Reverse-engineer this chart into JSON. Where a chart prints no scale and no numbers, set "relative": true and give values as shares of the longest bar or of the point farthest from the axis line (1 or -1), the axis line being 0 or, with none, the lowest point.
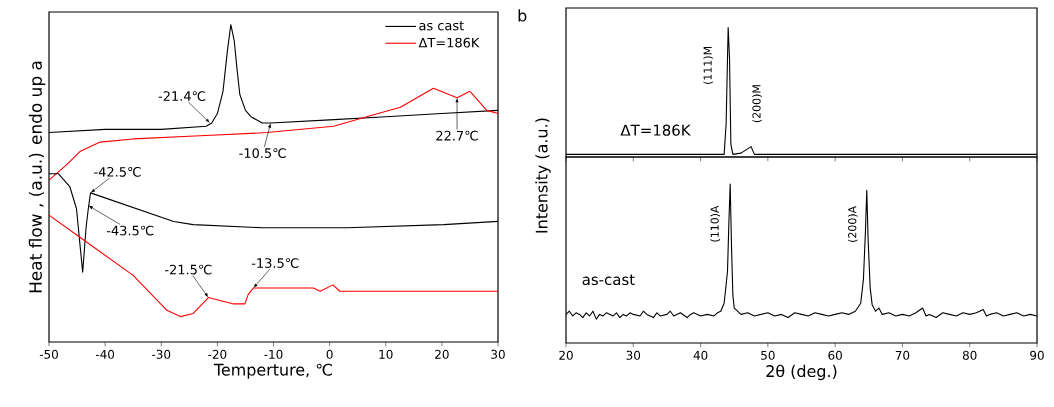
{
  "chart_data": [
    {
      "type": "line",
      "relative": true,
      "xlabel": "Temperture, ℃",
      "ylabel": "Heat flow , (a.u.) endo up a",
      "xlim": [
        -50,
        30
      ],
      "xticks": [
        -50,
        -40,
        -30,
        -20,
        -10,
        0,
        10,
        20,
        30
      ],
      "legend": "top right",
      "series": [
        {
          "name": "as cast",
          "color": "#000000",
          "x": [
            -50,
            -40,
            -30,
            -22,
            -21,
            -20,
            -19,
            -18.2,
            -17.6,
            -17,
            -16.5,
            -16,
            -15,
            -14,
            -12,
            -10.5,
            0,
            10,
            20,
            30
          ],
          "values": [
            0.66,
            0.67,
            0.67,
            0.68,
            0.69,
            0.72,
            0.79,
            0.92,
            1.0,
            0.95,
            0.86,
            0.78,
            0.73,
            0.71,
            0.69,
            0.69,
            0.7,
            0.71,
            0.72,
            0.73
          ]
        },
        {
          "name": "ΔT=186K",
          "color": "#ff0000",
          "x": [
            -50,
            -46.8,
            -44.5,
            -40.9,
            -35,
            -23.1,
            -11.2,
            0.7,
            6.6,
            12.6,
            18.5,
            22.7,
            25,
            28,
            30
          ],
          "values": [
            0.51,
            0.56,
            0.6,
            0.63,
            0.64,
            0.65,
            0.66,
            0.68,
            0.71,
            0.74,
            0.8,
            0.77,
            0.79,
            0.73,
            0.72
          ]
        },
        {
          "color": "#000000",
          "x": [
            -50,
            -48.3,
            -46.3,
            -45.1,
            -44.5,
            -44,
            -43.4,
            -43,
            -42.6,
            -27.8,
            -24.3,
            -11.8,
            3.1,
            20.3,
            30
          ],
          "values": [
            0.53,
            0.53,
            0.49,
            0.42,
            0.31,
            0.22,
            0.36,
            0.42,
            0.47,
            0.38,
            0.37,
            0.36,
            0.36,
            0.37,
            0.38
          ]
        },
        {
          "color": "#ff0000",
          "x": [
            -50,
            -44.5,
            -35,
            -29,
            -26.6,
            -24.3,
            -21.6,
            -17.1,
            -15.1,
            -14.5,
            -13.6,
            -2.9,
            -1.7,
            0.6,
            1.8,
            30
          ],
          "values": [
            0.4,
            0.33,
            0.21,
            0.1,
            0.08,
            0.09,
            0.14,
            0.12,
            0.12,
            0.15,
            0.17,
            0.17,
            0.16,
            0.18,
            0.16,
            0.16
          ]
        }
      ],
      "annotations": [
        {
          "text": "-21.4℃",
          "x": -21.3,
          "y": 0.69
        },
        {
          "text": "-10.5℃",
          "x": -10.5,
          "y": 0.69
        },
        {
          "text": "22.7℃",
          "x": 22.7,
          "y": 0.77
        },
        {
          "text": "-42.5℃",
          "x": -42.6,
          "y": 0.47
        },
        {
          "text": "-43.5℃",
          "x": -43.0,
          "y": 0.43
        },
        {
          "text": "-21.5℃",
          "x": -21.6,
          "y": 0.14
        },
        {
          "text": "-13.5℃",
          "x": -13.6,
          "y": 0.17
        }
      ]
    },
    {
      "type": "line",
      "relative": true,
      "title": "b",
      "xlim": [
        20,
        90
      ],
      "xticks": [
        20,
        30,
        40,
        50,
        60,
        70,
        80,
        90
      ],
      "tick_labels": false,
      "series": [
        {
          "name": "ΔT=186K",
          "color": "#000000",
          "x": [
            20,
            30,
            43.5,
            43.8,
            44.0,
            44.1,
            44.3,
            44.5,
            44.8,
            46,
            47.5,
            48,
            60,
            75,
            90
          ],
          "values": [
            0.02,
            0.02,
            0.02,
            0.26,
            0.76,
            1.0,
            0.76,
            0.1,
            0.02,
            0.03,
            0.08,
            0.02,
            0.02,
            0.02,
            0.02
          ]
        }
      ],
      "annotations": [
        {
          "text": "(111)M",
          "x": 44.1,
          "y": 1.0
        },
        {
          "text": "(200)M",
          "x": 47.5,
          "y": 0.08
        }
      ]
    },
    {
      "type": "line",
      "relative": true,
      "xlabel": "2θ  (deg.)",
      "ylabel": "Intensity (a.u.)",
      "xlim": [
        20,
        90
      ],
      "xticks": [
        20,
        30,
        40,
        50,
        60,
        70,
        80,
        90
      ],
      "series": [
        {
          "name": "as-cast",
          "color": "#000000",
          "x": [
            20,
            20.5,
            21,
            21.5,
            22,
            22.5,
            23,
            23.5,
            24,
            24.5,
            25,
            25.5,
            26,
            26.5,
            27,
            27.5,
            28,
            28.5,
            29,
            29.5,
            30,
            31,
            31.5,
            32,
            33,
            33.5,
            34,
            35,
            35.5,
            36,
            37,
            38,
            38.5,
            39,
            40,
            41,
            42,
            42.5,
            43,
            43.5,
            44,
            44.2,
            44.4,
            44.6,
            44.8,
            45,
            45.5,
            46,
            47,
            48,
            49,
            50,
            51,
            52,
            53,
            54,
            55,
            56,
            57,
            58,
            59,
            60,
            61,
            62,
            63,
            63.8,
            64.2,
            64.5,
            64.7,
            64.9,
            65.2,
            65.5,
            66,
            66.5,
            67,
            68,
            69,
            70,
            71,
            72,
            73,
            73.5,
            74,
            75,
            76,
            77,
            78,
            79,
            80,
            81,
            82,
            82.5,
            83,
            84,
            85,
            86,
            87,
            88,
            89,
            90
          ],
          "values": [
            0.18,
            0.2,
            0.17,
            0.19,
            0.18,
            0.16,
            0.19,
            0.17,
            0.2,
            0.15,
            0.18,
            0.17,
            0.19,
            0.18,
            0.17,
            0.19,
            0.16,
            0.18,
            0.17,
            0.19,
            0.18,
            0.17,
            0.2,
            0.18,
            0.16,
            0.19,
            0.17,
            0.18,
            0.2,
            0.17,
            0.19,
            0.16,
            0.18,
            0.19,
            0.17,
            0.18,
            0.17,
            0.19,
            0.2,
            0.25,
            0.45,
            0.75,
            1.0,
            0.6,
            0.3,
            0.22,
            0.2,
            0.18,
            0.19,
            0.17,
            0.18,
            0.19,
            0.17,
            0.18,
            0.16,
            0.19,
            0.18,
            0.17,
            0.19,
            0.18,
            0.17,
            0.18,
            0.19,
            0.18,
            0.2,
            0.25,
            0.4,
            0.7,
            0.96,
            0.65,
            0.35,
            0.24,
            0.2,
            0.22,
            0.18,
            0.19,
            0.17,
            0.18,
            0.17,
            0.19,
            0.22,
            0.17,
            0.18,
            0.16,
            0.19,
            0.18,
            0.17,
            0.19,
            0.18,
            0.19,
            0.21,
            0.17,
            0.18,
            0.19,
            0.17,
            0.18,
            0.19,
            0.17,
            0.18,
            0.17
          ]
        }
      ],
      "annotations": [
        {
          "text": "(110)A",
          "x": 44.4,
          "y": 1.0
        },
        {
          "text": "(200)A",
          "x": 64.7,
          "y": 0.96
        }
      ]
    }
  ]
}
